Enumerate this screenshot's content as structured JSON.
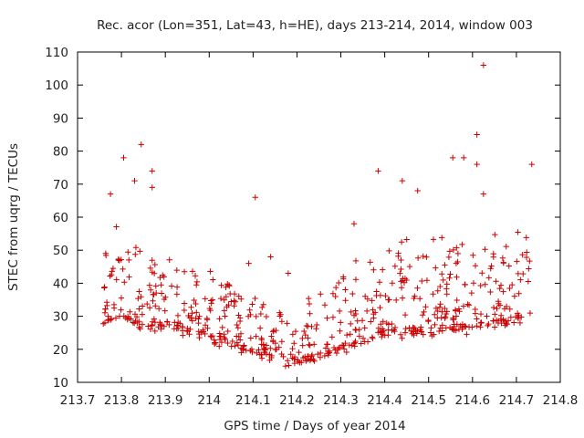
{
  "chart_data": {
    "type": "scatter",
    "title": "Rec. acor (Lon=351, Lat=43, h=HE), days 213-214, 2014, window 003",
    "xlabel": "GPS time / Days of year 2014",
    "ylabel": "STEC from uqrg / TECUs",
    "xlim": [
      213.7,
      214.8
    ],
    "ylim": [
      10,
      110
    ],
    "xticks": [
      "213.7",
      "213.8",
      "213.9",
      "214",
      "214.1",
      "214.2",
      "214.3",
      "214.4",
      "214.5",
      "214.6",
      "214.7",
      "214.8"
    ],
    "yticks": [
      "10",
      "20",
      "30",
      "40",
      "50",
      "60",
      "70",
      "80",
      "90",
      "100",
      "110"
    ],
    "grid": false,
    "marker": "plus",
    "color": "#cc0000",
    "note": "Point cloud approximated from visible scatter; multiple arcs plus isolated outliers.",
    "outliers": [
      {
        "x": 213.845,
        "y": 82
      },
      {
        "x": 213.805,
        "y": 78
      },
      {
        "x": 213.87,
        "y": 74
      },
      {
        "x": 213.83,
        "y": 71
      },
      {
        "x": 213.87,
        "y": 69
      },
      {
        "x": 213.775,
        "y": 67
      },
      {
        "x": 214.105,
        "y": 66
      },
      {
        "x": 214.385,
        "y": 74
      },
      {
        "x": 214.44,
        "y": 71
      },
      {
        "x": 214.475,
        "y": 68
      },
      {
        "x": 214.555,
        "y": 78
      },
      {
        "x": 214.58,
        "y": 78
      },
      {
        "x": 214.625,
        "y": 106
      },
      {
        "x": 214.61,
        "y": 85
      },
      {
        "x": 214.61,
        "y": 76
      },
      {
        "x": 214.735,
        "y": 76
      },
      {
        "x": 214.625,
        "y": 67
      },
      {
        "x": 214.33,
        "y": 58
      },
      {
        "x": 214.14,
        "y": 48
      },
      {
        "x": 214.09,
        "y": 46
      },
      {
        "x": 214.18,
        "y": 43
      }
    ]
  }
}
